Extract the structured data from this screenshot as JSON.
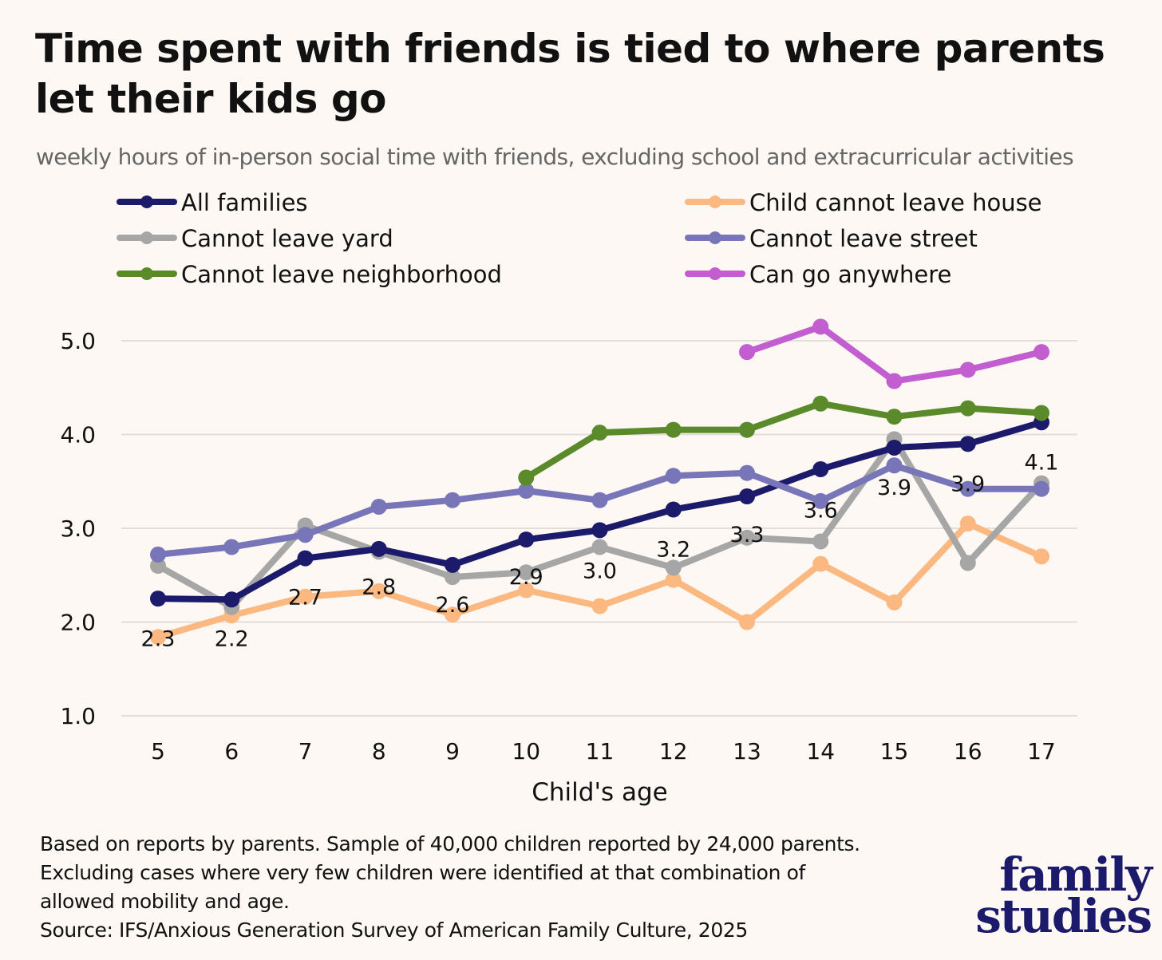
{
  "title": "Time spent with friends is tied to where parents let their kids go",
  "subtitle": "weekly hours of in-person social time with friends, excluding school and extracurricular activities",
  "footnote": [
    "Based on reports by parents. Sample of 40,000 children reported by 24,000 parents.",
    "Excluding cases where very few children were identified at that combination of",
    "allowed mobility and age.",
    "Source: IFS/Anxious Generation Survey of American Family Culture, 2025"
  ],
  "logo": {
    "line1": "family",
    "line2": "studies"
  },
  "chart_data": {
    "type": "line",
    "xlabel": "Child's age",
    "ylabel": "",
    "x": [
      5,
      6,
      7,
      8,
      9,
      10,
      11,
      12,
      13,
      14,
      15,
      16,
      17
    ],
    "ylim": [
      1.0,
      5.0
    ],
    "yticks": [
      "1.0",
      "2.0",
      "3.0",
      "4.0",
      "5.0"
    ],
    "grid": true,
    "legend_position": "top",
    "series": [
      {
        "name": "All families",
        "color": "#1c1a6b",
        "values": [
          2.25,
          2.24,
          2.68,
          2.78,
          2.61,
          2.88,
          2.98,
          3.2,
          3.34,
          3.63,
          3.86,
          3.9,
          4.13
        ]
      },
      {
        "name": "Child cannot leave house",
        "color": "#fbb880",
        "values": [
          1.84,
          2.07,
          2.27,
          2.33,
          2.08,
          2.34,
          2.17,
          2.45,
          2.0,
          2.62,
          2.21,
          3.05,
          2.7
        ]
      },
      {
        "name": "Cannot leave yard",
        "color": "#a6a6a6",
        "values": [
          2.6,
          2.16,
          3.03,
          2.75,
          2.48,
          2.53,
          2.8,
          2.58,
          2.9,
          2.86,
          3.95,
          2.63,
          3.48
        ]
      },
      {
        "name": "Cannot leave street",
        "color": "#7875b8",
        "values": [
          2.72,
          2.8,
          2.93,
          3.23,
          3.3,
          3.4,
          3.3,
          3.56,
          3.59,
          3.29,
          3.67,
          3.42,
          3.42
        ]
      },
      {
        "name": "Cannot leave neighborhood",
        "color": "#5a8a2a",
        "values": [
          null,
          null,
          null,
          null,
          null,
          3.54,
          4.02,
          4.05,
          4.05,
          4.33,
          4.19,
          4.28,
          4.23
        ]
      },
      {
        "name": "Can go anywhere",
        "color": "#c25ed0",
        "values": [
          null,
          null,
          null,
          null,
          null,
          null,
          null,
          null,
          4.88,
          5.15,
          4.57,
          4.69,
          4.88
        ]
      }
    ],
    "data_labels": [
      {
        "x": 5,
        "text": "2.3",
        "y": 1.84
      },
      {
        "x": 6,
        "text": "2.2",
        "y": 1.84
      },
      {
        "x": 7,
        "text": "2.7",
        "y": 2.28
      },
      {
        "x": 8,
        "text": "2.8",
        "y": 2.39
      },
      {
        "x": 9,
        "text": "2.6",
        "y": 2.2
      },
      {
        "x": 10,
        "text": "2.9",
        "y": 2.5
      },
      {
        "x": 11,
        "text": "3.0",
        "y": 2.56
      },
      {
        "x": 12,
        "text": "3.2",
        "y": 2.79
      },
      {
        "x": 13,
        "text": "3.3",
        "y": 2.95
      },
      {
        "x": 14,
        "text": "3.6",
        "y": 3.21
      },
      {
        "x": 15,
        "text": "3.9",
        "y": 3.45
      },
      {
        "x": 16,
        "text": "3.9",
        "y": 3.49
      },
      {
        "x": 17,
        "text": "4.1",
        "y": 3.72
      }
    ]
  }
}
